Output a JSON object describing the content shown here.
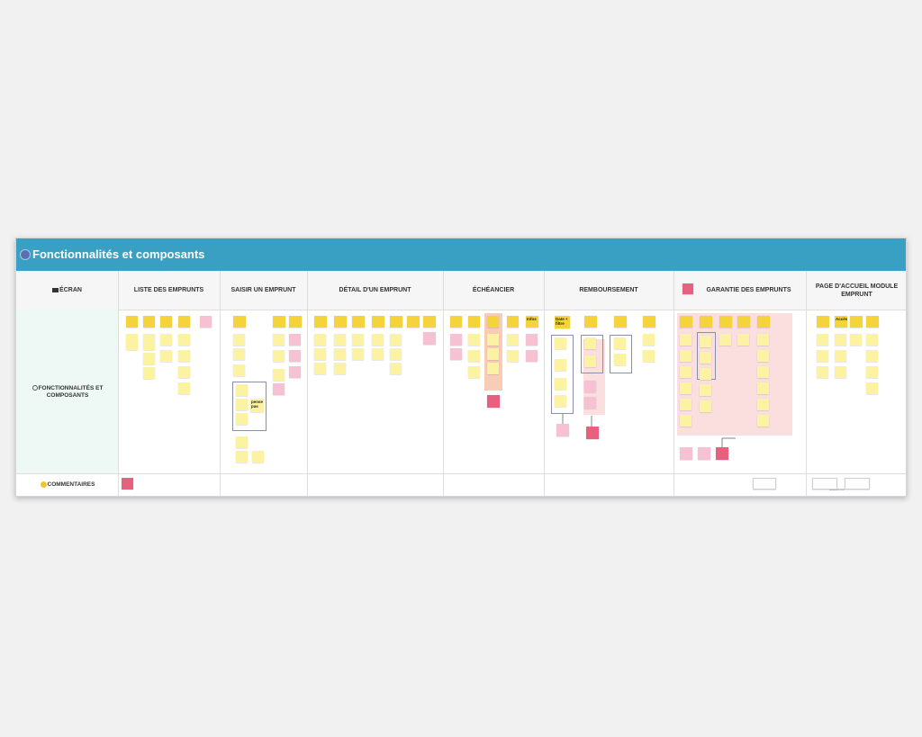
{
  "board": {
    "title": "Fonctionnalités et composants",
    "icons": {
      "title": "gear-icon",
      "row_screen": "screen-icon",
      "row_features": "gear-icon",
      "row_comments": "smile-icon"
    }
  },
  "rows": {
    "screen": "ÉCRAN",
    "features": "FONCTIONNALITÉS ET COMPOSANTS",
    "comments": "COMMENTAIRES"
  },
  "columns": [
    "LISTE DES EMPRUNTS",
    "SAISIR UN EMPRUNT",
    "DÉTAIL D'UN EMPRUNT",
    "ÉCHÉANCIER",
    "REMBOURSEMENT",
    "GARANTIE DES EMPRUNTS",
    "PAGE D'ACCUEIL MODULE EMPRUNT"
  ],
  "note_labels": {
    "saisir_big": "pense pas",
    "echeancier_big": "Infos",
    "remb_big": "Date + filtre",
    "accueil_big": "Accès"
  },
  "colors": {
    "header": "#3aa0c3",
    "note_yellow": "#f5d33a",
    "note_light": "#fbf3a1",
    "note_pink": "#f6c2d3",
    "note_red": "#e8607e"
  }
}
